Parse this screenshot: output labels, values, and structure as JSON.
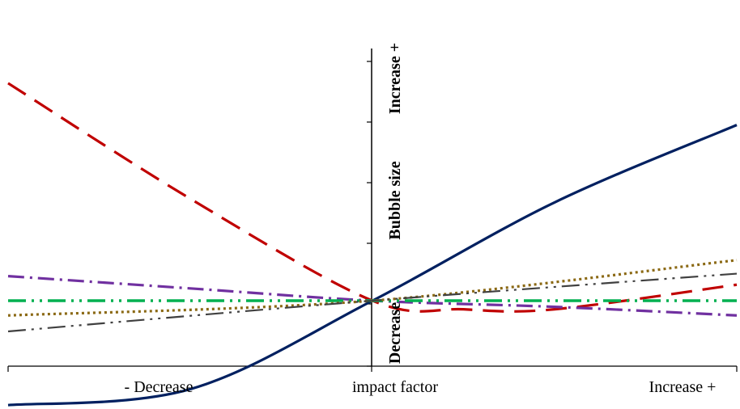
{
  "chart_data": {
    "type": "line",
    "xlabel": "impact factor",
    "x_tick_labels": [
      "- Decrease",
      "impact factor",
      "Increase +"
    ],
    "y_axis_labels": {
      "top": "Increase +",
      "middle": "Bubble size",
      "bottom": "Decrease"
    },
    "xlim": [
      -1,
      1
    ],
    "ylim": [
      -1,
      1.5
    ],
    "grid": false,
    "legend": "none",
    "series": [
      {
        "color": "#002060",
        "dash": "solid",
        "width": 3.2,
        "points": [
          [
            -1,
            -0.85
          ],
          [
            -0.5,
            -0.72
          ],
          [
            0,
            0
          ],
          [
            0.5,
            0.8
          ],
          [
            1,
            1.43
          ]
        ]
      },
      {
        "color": "#C00000",
        "dash": "long-dash",
        "width": 3.2,
        "points": [
          [
            -1,
            1.77
          ],
          [
            -0.5,
            0.83
          ],
          [
            0,
            0
          ],
          [
            0.25,
            -0.07
          ],
          [
            0.5,
            -0.07
          ],
          [
            1,
            0.13
          ]
        ]
      },
      {
        "color": "#7030A0",
        "dash": "dash-dot",
        "width": 3.2,
        "points": [
          [
            -1,
            0.2
          ],
          [
            -0.5,
            0.1
          ],
          [
            0,
            0
          ],
          [
            0.5,
            -0.05
          ],
          [
            1,
            -0.12
          ]
        ]
      },
      {
        "color": "#00B050",
        "dash": "dash-dot-dot",
        "width": 3.6,
        "points": [
          [
            -1,
            0
          ],
          [
            1,
            0
          ]
        ]
      },
      {
        "color": "#8B6914",
        "dash": "dotted",
        "width": 3.2,
        "points": [
          [
            -1,
            -0.12
          ],
          [
            0,
            0
          ],
          [
            1,
            0.33
          ]
        ]
      },
      {
        "color": "#404040",
        "dash": "dash-dot-dot",
        "width": 2.2,
        "points": [
          [
            -1,
            -0.25
          ],
          [
            0,
            0
          ],
          [
            1,
            0.22
          ]
        ]
      }
    ]
  }
}
